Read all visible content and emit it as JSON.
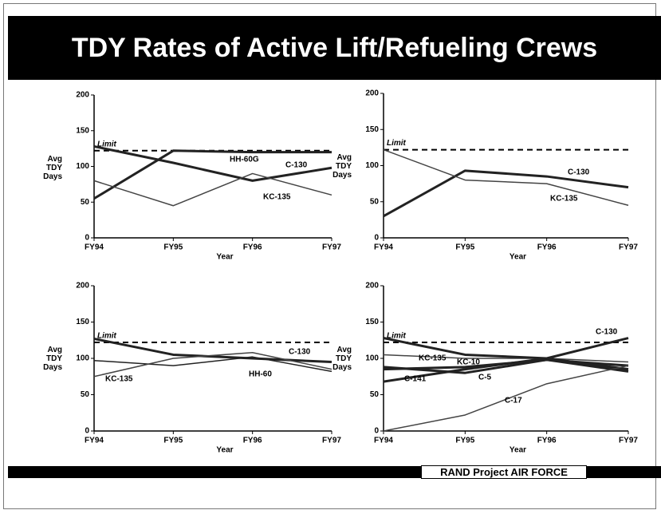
{
  "title": "TDY Rates of Active Lift/Refueling Crews",
  "footer": "RAND Project AIR FORCE",
  "chart_data": [
    {
      "type": "line",
      "categories": [
        "FY94",
        "FY95",
        "FY96",
        "FY97"
      ],
      "xlabel": "Year",
      "ylabel": "Avg TDY Days",
      "ylim": [
        0,
        200
      ],
      "yticks": [
        0,
        50,
        100,
        150,
        200
      ],
      "reference_line": {
        "label": "Limit",
        "value": 122
      },
      "series": [
        {
          "name": "C-130",
          "color": "#222222",
          "values": [
            128,
            105,
            80,
            98
          ]
        },
        {
          "name": "HH-60G",
          "color": "#222222",
          "values": [
            55,
            122,
            120,
            120
          ]
        },
        {
          "name": "KC-135",
          "color": "#444444",
          "values": [
            80,
            45,
            90,
            60
          ]
        }
      ]
    },
    {
      "type": "line",
      "categories": [
        "FY94",
        "FY95",
        "FY96",
        "FY97"
      ],
      "xlabel": "Year",
      "ylabel": "Avg TDY Days",
      "ylim": [
        0,
        200
      ],
      "yticks": [
        0,
        50,
        100,
        150,
        200
      ],
      "reference_line": {
        "label": "Limit",
        "value": 122
      },
      "series": [
        {
          "name": "C-130",
          "color": "#222222",
          "values": [
            30,
            93,
            85,
            70
          ]
        },
        {
          "name": "KC-135",
          "color": "#444444",
          "values": [
            122,
            80,
            75,
            45
          ]
        }
      ]
    },
    {
      "type": "line",
      "categories": [
        "FY94",
        "FY95",
        "FY96",
        "FY97"
      ],
      "xlabel": "Year",
      "ylabel": "Avg TDY Days",
      "ylim": [
        0,
        200
      ],
      "yticks": [
        0,
        50,
        100,
        150,
        200
      ],
      "reference_line": {
        "label": "Limit",
        "value": 122
      },
      "series": [
        {
          "name": "C-130",
          "color": "#222222",
          "values": [
            127,
            105,
            100,
            95
          ]
        },
        {
          "name": "HH-60",
          "color": "#222222",
          "values": [
            97,
            90,
            102,
            82
          ]
        },
        {
          "name": "KC-135",
          "color": "#444444",
          "values": [
            75,
            100,
            108,
            85
          ]
        }
      ]
    },
    {
      "type": "line",
      "categories": [
        "FY94",
        "FY95",
        "FY96",
        "FY97"
      ],
      "xlabel": "Year",
      "ylabel": "Avg TDY Days",
      "ylim": [
        0,
        200
      ],
      "yticks": [
        0,
        50,
        100,
        150,
        200
      ],
      "reference_line": {
        "label": "Limit",
        "value": 122
      },
      "series": [
        {
          "name": "C-130",
          "color": "#222222",
          "values": [
            68,
            85,
            100,
            128
          ]
        },
        {
          "name": "KC-135",
          "color": "#444444",
          "values": [
            105,
            100,
            100,
            95
          ]
        },
        {
          "name": "KC-10",
          "color": "#222222",
          "values": [
            88,
            80,
            98,
            90
          ]
        },
        {
          "name": "C-5",
          "color": "#222222",
          "values": [
            128,
            105,
            100,
            85
          ]
        },
        {
          "name": "C-141",
          "color": "#222222",
          "values": [
            85,
            88,
            98,
            82
          ]
        },
        {
          "name": "C-17",
          "color": "#444444",
          "values": [
            0,
            22,
            65,
            90
          ]
        }
      ]
    }
  ]
}
